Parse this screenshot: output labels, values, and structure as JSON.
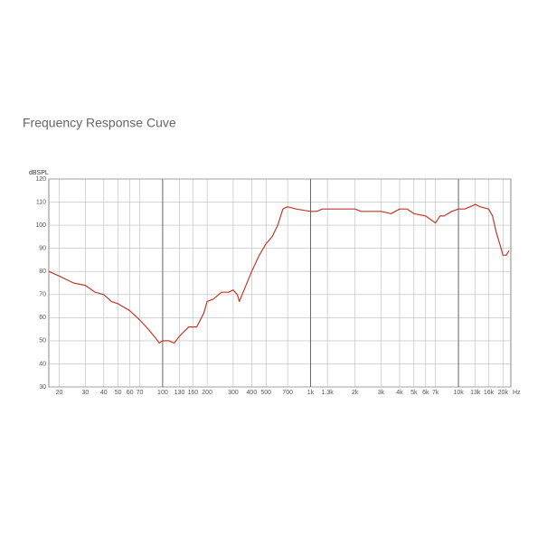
{
  "chart_data": {
    "type": "line",
    "title": "Frequency Response Cuve",
    "y_label": "dBSPL",
    "x_label": "Hz",
    "log_x": true,
    "grid": true,
    "color": "#c0392b",
    "xlim": [
      17,
      22600
    ],
    "ylim": [
      30,
      120
    ],
    "yticks": [
      30,
      40,
      50,
      60,
      70,
      80,
      90,
      100,
      110,
      120
    ],
    "xticks": [
      20,
      30,
      40,
      50,
      60,
      70,
      100,
      130,
      160,
      200,
      300,
      400,
      500,
      700,
      {
        "value": 1000,
        "label": "1k"
      },
      {
        "value": 1300,
        "label": "1.3k"
      },
      {
        "value": 2000,
        "label": "2k"
      },
      {
        "value": 3000,
        "label": "3k"
      },
      {
        "value": 4000,
        "label": "4k"
      },
      {
        "value": 5000,
        "label": "5k"
      },
      {
        "value": 6000,
        "label": "6k"
      },
      {
        "value": 7000,
        "label": "7k"
      },
      {
        "value": 10000,
        "label": "10k"
      },
      {
        "value": 13000,
        "label": "13k"
      },
      {
        "value": 16000,
        "label": "16k"
      },
      {
        "value": 20000,
        "label": "20k"
      }
    ],
    "x": [
      17,
      20,
      25,
      30,
      35,
      40,
      45,
      50,
      60,
      70,
      80,
      90,
      95,
      100,
      110,
      120,
      130,
      150,
      170,
      190,
      200,
      220,
      250,
      280,
      300,
      320,
      330,
      350,
      400,
      450,
      500,
      550,
      600,
      650,
      700,
      800,
      1000,
      1100,
      1200,
      1500,
      2000,
      2200,
      3000,
      3500,
      4000,
      4500,
      5000,
      6000,
      7000,
      7500,
      8000,
      9000,
      10000,
      11000,
      12000,
      13000,
      14000,
      16000,
      17000,
      18000,
      19000,
      20000,
      21000,
      22000
    ],
    "values": [
      80,
      78,
      75,
      74,
      71,
      70,
      67,
      66,
      63,
      59,
      55,
      51,
      49,
      50,
      50,
      49,
      52,
      56,
      56,
      62,
      67,
      68,
      71,
      71,
      72,
      70,
      67,
      71,
      80,
      87,
      92,
      95,
      100,
      107,
      108,
      107,
      106,
      106,
      107,
      107,
      107,
      106,
      106,
      105,
      107,
      107,
      105,
      104,
      101,
      104,
      104,
      106,
      107,
      107,
      108,
      109,
      108,
      107,
      104,
      97,
      92,
      87,
      87,
      89
    ]
  }
}
